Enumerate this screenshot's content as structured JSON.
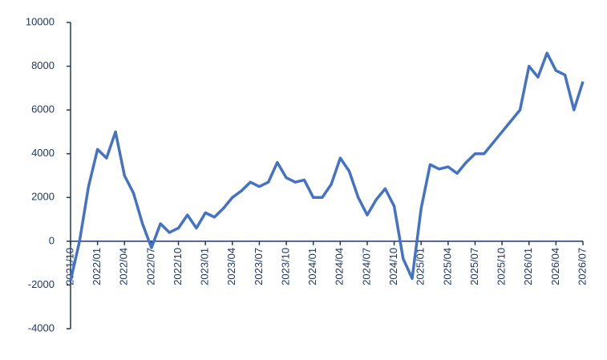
{
  "chart_data": {
    "type": "line",
    "categories": [
      "2021/10",
      null,
      null,
      "2022/01",
      null,
      null,
      "2022/04",
      null,
      null,
      "2022/07",
      null,
      null,
      "2022/10",
      null,
      null,
      "2023/01",
      null,
      null,
      "2023/04",
      null,
      null,
      "2023/07",
      null,
      null,
      "2023/10",
      null,
      null,
      "2024/01",
      null,
      null,
      "2024/04",
      null,
      null,
      "2024/07",
      null,
      null,
      "2024/10",
      null,
      null,
      "2025/01",
      null,
      null,
      "2025/04",
      null,
      null,
      "2025/07",
      null,
      null,
      "2025/10",
      null,
      null,
      "2026/01",
      null,
      null,
      "2026/04",
      null,
      null,
      "2026/07"
    ],
    "values": [
      -1800,
      0,
      2500,
      4200,
      3800,
      5000,
      3000,
      2200,
      800,
      -300,
      800,
      400,
      600,
      1200,
      600,
      1300,
      1100,
      1500,
      2000,
      2300,
      2700,
      2500,
      2700,
      3600,
      2900,
      2700,
      2800,
      2000,
      2000,
      2600,
      3800,
      3200,
      2000,
      1200,
      1900,
      2400,
      1600,
      -800,
      -1700,
      1500,
      3500,
      3300,
      3400,
      3100,
      3600,
      4000,
      4000,
      4500,
      5000,
      5500,
      6000,
      8000,
      7500,
      8600,
      7800,
      7600,
      6000,
      7300
    ],
    "color": "#4472c4",
    "ylim": [
      -4000,
      10000
    ],
    "yticks": [
      -4000,
      -2000,
      0,
      2000,
      4000,
      6000,
      8000,
      10000
    ]
  }
}
